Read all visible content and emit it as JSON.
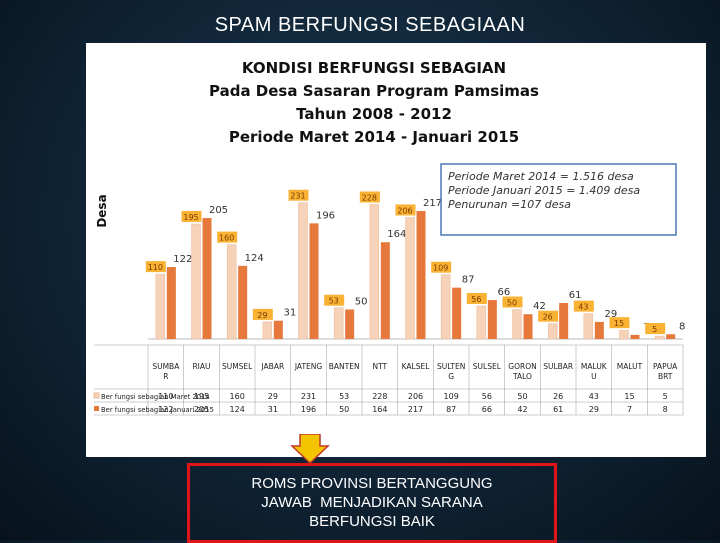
{
  "slide": {
    "title": "SPAM BERFUNGSI SEBAGIAAN",
    "callout_lines": [
      "ROMS PROVINSI BERTANGGUNG",
      "JAWAB  MENJADIKAN SARANA",
      "BERFUNGSI BAIK"
    ],
    "arrow_color": "#f5c400",
    "callout_border_color": "#e01515"
  },
  "chart_data": {
    "type": "bar",
    "title_lines": [
      "KONDISI BERFUNGSI SEBAGIAN",
      "Pada Desa Sasaran Program Pamsimas",
      "Tahun 2008 - 2012",
      "Periode Maret 2014 - Januari 2015"
    ],
    "ylabel": "Desa",
    "categories": [
      [
        "SUMBA",
        "R"
      ],
      [
        "RIAU"
      ],
      [
        "SUMSEL"
      ],
      [
        "JABAR"
      ],
      [
        "JATENG"
      ],
      [
        "BANTEN"
      ],
      [
        "NTT"
      ],
      [
        "KALSEL"
      ],
      [
        "SULTEN",
        "G"
      ],
      [
        "SULSEL"
      ],
      [
        "GORON",
        "TALO"
      ],
      [
        "SULBAR"
      ],
      [
        "MALUK",
        "U"
      ],
      [
        "MALUT"
      ],
      [
        "PAPUA",
        "BRT"
      ]
    ],
    "series": [
      {
        "name": "Ber fungsi sebagian Maret 2014",
        "color": "#f6d2b8",
        "label_bg": "#f9b233",
        "values": [
          110,
          195,
          160,
          29,
          231,
          53,
          228,
          206,
          109,
          56,
          50,
          26,
          43,
          15,
          5
        ]
      },
      {
        "name": "Ber fungsi sebagian Januari 2015",
        "color": "#e5783a",
        "values": [
          122,
          205,
          124,
          31,
          196,
          50,
          164,
          217,
          87,
          66,
          42,
          61,
          29,
          7,
          8
        ]
      }
    ],
    "ylim": [
      0,
      240
    ],
    "legend": "table-below",
    "annotation_lines": [
      "Periode Maret 2014    = 1.516 desa",
      "Periode  Januari 2015 =  1.409 desa",
      "Penurunan =107 desa"
    ]
  }
}
